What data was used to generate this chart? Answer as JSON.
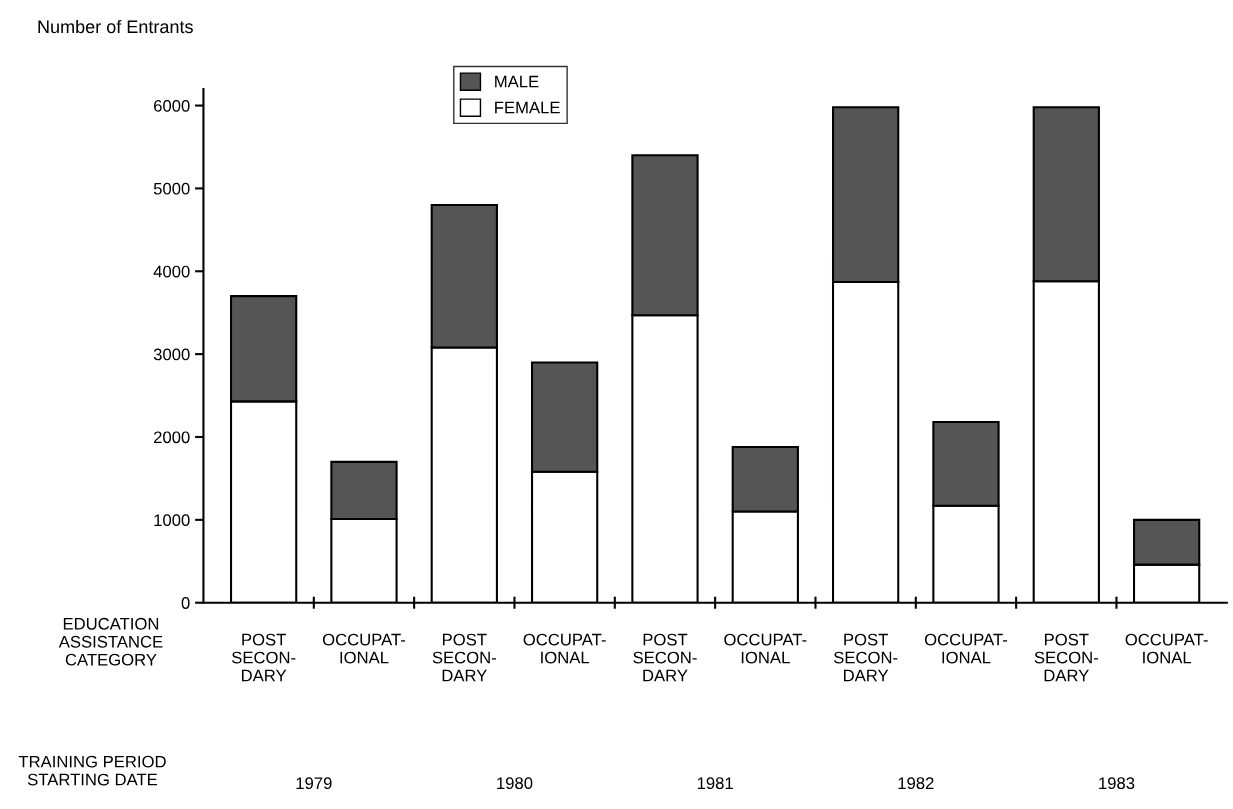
{
  "chart_data": {
    "type": "bar",
    "stacked": true,
    "ylabel": "Number of Entrants",
    "categories": [
      "POST\nSECON-\nDARY",
      "OCCUPAT-\nIONAL",
      "POST\nSECON-\nDARY",
      "OCCUPAT-\nIONAL",
      "POST\nSECON-\nDARY",
      "OCCUPAT-\nIONAL",
      "POST\nSECON-\nDARY",
      "OCCUPAT-\nIONAL",
      "POST\nSECON-\nDARY",
      "OCCUPAT-\nIONAL"
    ],
    "series": [
      {
        "name": "FEMALE",
        "color": "#ffffff",
        "values": [
          2430,
          1010,
          3080,
          1580,
          3470,
          1100,
          3870,
          1170,
          3880,
          460
        ]
      },
      {
        "name": "MALE",
        "color": "#555555",
        "values": [
          1270,
          690,
          1720,
          1320,
          1930,
          780,
          2110,
          1010,
          2100,
          540
        ]
      }
    ],
    "ylim": [
      0,
      6200
    ],
    "yticks": [
      0,
      1000,
      2000,
      3000,
      4000,
      5000,
      6000
    ],
    "legend": "top",
    "grid": false,
    "annotations": [
      "EDUCATION\nASSISTANCE\nCATEGORY",
      "TRAINING PERIOD\nSTARTING DATE",
      "1979",
      "1980",
      "1981",
      "1982",
      "1983"
    ]
  }
}
